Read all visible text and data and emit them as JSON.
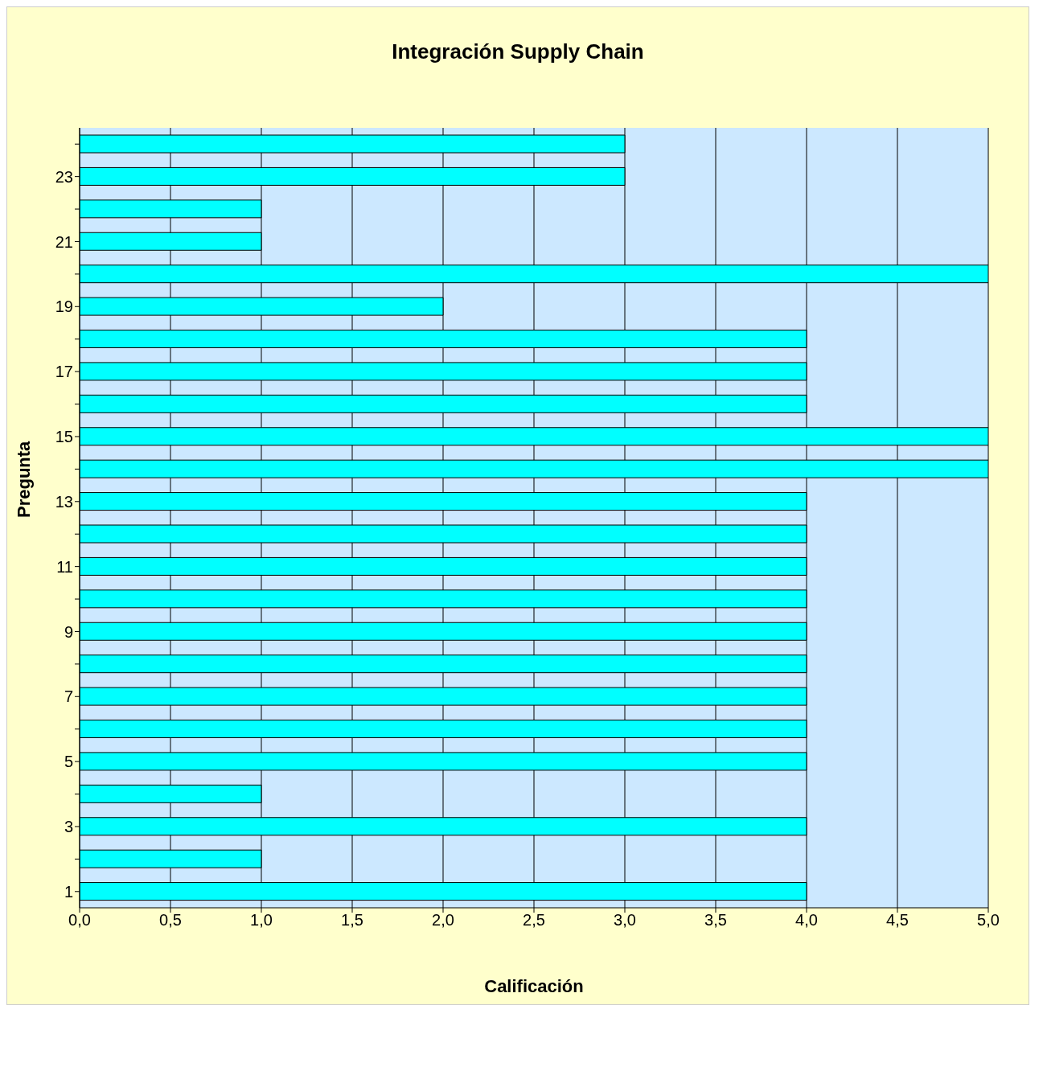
{
  "chart_data": {
    "type": "bar",
    "orientation": "horizontal",
    "title": "Integración Supply Chain",
    "xlabel": "Calificación",
    "ylabel": "Pregunta",
    "categories": [
      null,
      "23",
      null,
      "21",
      null,
      "19",
      null,
      "17",
      null,
      "15",
      null,
      "13",
      null,
      "11",
      null,
      "9",
      null,
      "7",
      null,
      "5",
      null,
      "3",
      null,
      "1"
    ],
    "values": [
      3,
      3,
      1,
      1,
      5,
      2,
      4,
      4,
      4,
      5,
      5,
      4,
      4,
      4,
      4,
      4,
      4,
      4,
      4,
      4,
      1,
      4,
      1,
      4
    ],
    "color": "#00ffff",
    "xlim": [
      0,
      5
    ],
    "xticks": [
      {
        "value": 0,
        "label": "0,0"
      },
      {
        "value": 0.5,
        "label": "0,5"
      },
      {
        "value": 1,
        "label": "1,0"
      },
      {
        "value": 1.5,
        "label": "1,5"
      },
      {
        "value": 2,
        "label": "2,0"
      },
      {
        "value": 2.5,
        "label": "2,5"
      },
      {
        "value": 3,
        "label": "3,0"
      },
      {
        "value": 3.5,
        "label": "3,5"
      },
      {
        "value": 4,
        "label": "4,0"
      },
      {
        "value": 4.5,
        "label": "4,5"
      },
      {
        "value": 5,
        "label": "5,0"
      }
    ],
    "grid": "x",
    "legend": false
  }
}
